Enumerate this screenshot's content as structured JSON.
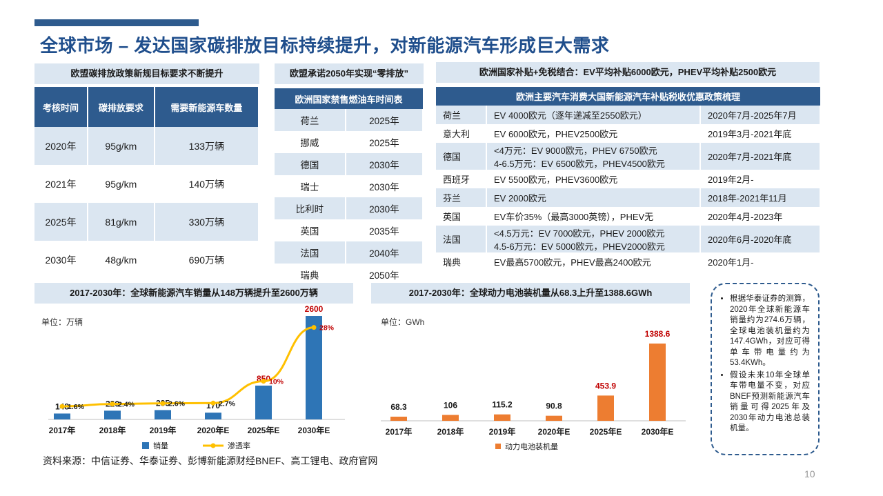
{
  "title": "全球市场 – 发达国家碳排放目标持续提升，对新能源汽车形成巨大需求",
  "panel1": {
    "heading": "欧盟碳排放政策新规目标要求不断提升",
    "columns": [
      "考核时间",
      "碳排放要求",
      "需要新能源车数量"
    ],
    "rows": [
      [
        "2020年",
        "95g/km",
        "133万辆"
      ],
      [
        "2021年",
        "95g/km",
        "140万辆"
      ],
      [
        "2025年",
        "81g/km",
        "330万辆"
      ],
      [
        "2030年",
        "48g/km",
        "690万辆"
      ]
    ]
  },
  "panel2": {
    "heading": "欧盟承诺2050年实现“零排放”",
    "subheading": "欧洲国家禁售燃油车时间表",
    "rows": [
      [
        "荷兰",
        "2025年"
      ],
      [
        "挪威",
        "2025年"
      ],
      [
        "德国",
        "2030年"
      ],
      [
        "瑞士",
        "2030年"
      ],
      [
        "比利时",
        "2030年"
      ],
      [
        "英国",
        "2035年"
      ],
      [
        "法国",
        "2040年"
      ],
      [
        "瑞典",
        "2050年"
      ]
    ]
  },
  "panel3": {
    "heading": "欧洲国家补贴+免税结合：EV平均补贴6000欧元，PHEV平均补贴2500欧元",
    "subheading": "欧洲主要汽车消费大国新能源汽车补贴税收优惠政策梳理",
    "rows": [
      {
        "country": "荷兰",
        "policy": [
          "EV 4000欧元（逐年递减至2550欧元）"
        ],
        "period": "2020年7月-2025年7月"
      },
      {
        "country": "意大利",
        "policy": [
          "EV 6000欧元，PHEV2500欧元"
        ],
        "period": "2019年3月-2021年底"
      },
      {
        "country": "德国",
        "policy": [
          "<4万元：EV 9000欧元，PHEV 6750欧元",
          "4-6.5万元：EV 6500欧元，PHEV4500欧元"
        ],
        "period": "2020年7月-2021年底"
      },
      {
        "country": "西班牙",
        "policy": [
          "EV 5500欧元，PHEV3600欧元"
        ],
        "period": "2019年2月-"
      },
      {
        "country": "芬兰",
        "policy": [
          "EV 2000欧元"
        ],
        "period": "2018年-2021年11月"
      },
      {
        "country": "英国",
        "policy": [
          "EV车价35%（最高3000英镑），PHEV无"
        ],
        "period": "2020年4月-2023年"
      },
      {
        "country": "法国",
        "policy": [
          "<4.5万元：EV 7000欧元，PHEV 2000欧元",
          "4.5-6万元：EV 5000欧元，PHEV2000欧元"
        ],
        "period": "2020年6月-2020年底"
      },
      {
        "country": "瑞典",
        "policy": [
          "EV最高5700欧元，PHEV最高2400欧元"
        ],
        "period": "2020年1月-"
      }
    ]
  },
  "chart1": {
    "heading": "2017-2030年：全球新能源汽车销量从148万辆提升至2600万辆",
    "unit": "单位：万辆",
    "legend_sales": "销量",
    "legend_rate": "渗透率"
  },
  "chart2": {
    "heading": "2017-2030年：全球动力电池装机量从68.3上升至1388.6GWh",
    "unit": "单位：GWh",
    "legend": "动力电池装机量"
  },
  "chart_data": [
    {
      "type": "bar",
      "categories": [
        "2017年",
        "2018年",
        "2019年",
        "2020年E",
        "2025年E",
        "2030年E"
      ],
      "series": [
        {
          "name": "销量",
          "values": [
            148,
            220,
            235,
            170,
            850,
            2600
          ],
          "color": "#2e75b6"
        },
        {
          "name": "渗透率",
          "type": "line",
          "values": [
            1.6,
            2.4,
            2.6,
            2.7,
            10,
            28
          ],
          "labels": [
            "1.6%",
            "2.4%",
            "2.6%",
            "2.7%",
            "10%",
            "28%"
          ],
          "color": "#ffc000"
        }
      ],
      "title": "2017-2030年：全球新能源汽车销量从148万辆提升至2600万辆",
      "ylabel": "单位：万辆"
    },
    {
      "type": "bar",
      "categories": [
        "2017年",
        "2018年",
        "2019年",
        "2020年E",
        "2025年E",
        "2030年E"
      ],
      "series": [
        {
          "name": "动力电池装机量",
          "values": [
            68.3,
            106,
            115.2,
            90.8,
            453.9,
            1388.6
          ],
          "color": "#ed7d31"
        }
      ],
      "title": "2017-2030年：全球动力电池装机量从68.3上升至1388.6GWh",
      "ylabel": "单位：GWh"
    }
  ],
  "note": {
    "items": [
      "根据华泰证券的测算，2020年全球新能源车销量约为274.6万辆，全球电池装机量约为147.4GWh，对应可得单车带电量约为53.4KWh。",
      "假设未来10年全球单车带电量不变，对应BNEF预测新能源汽车销量可得2025年及2030年动力电池总装机量。"
    ]
  },
  "source": "资料来源：中信证券、华泰证券、彭博新能源财经BNEF、高工锂电、政府官网",
  "page_number": "10"
}
